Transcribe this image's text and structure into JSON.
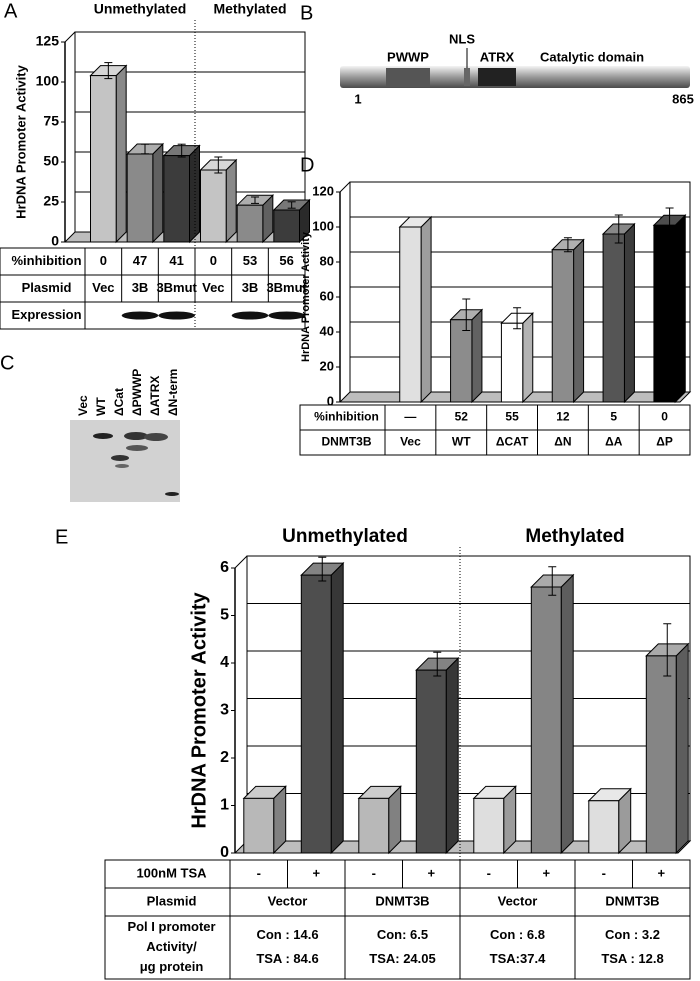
{
  "chart_data": [
    {
      "type": "bar",
      "panel": "A",
      "ylabel": "HrDNA Promoter Activity",
      "groups": [
        "Unmethylated",
        "Methylated"
      ],
      "categories": [
        "Vec",
        "3B",
        "3Bmut",
        "Vec",
        "3B",
        "3Bmut"
      ],
      "category_label": "Plasmid",
      "values": [
        104,
        55,
        54,
        45,
        23,
        20
      ],
      "errors": [
        5,
        3,
        4,
        5,
        2,
        2
      ],
      "colors": [
        "#c4c4c4",
        "#8a8a8a",
        "#3c3c3c",
        "#c4c4c4",
        "#8a8a8a",
        "#3c3c3c"
      ],
      "ylim": [
        0,
        125
      ],
      "yticks": [
        0,
        25,
        50,
        75,
        100,
        125
      ],
      "grid": true,
      "rows": [
        {
          "label": "%inhibition",
          "cells": [
            0,
            47,
            41,
            0,
            53,
            56
          ]
        }
      ],
      "rows_below": [
        {
          "label": "Expression"
        }
      ]
    },
    {
      "type": "bar",
      "panel": "D",
      "ylabel": "HrDNA Promoter Activity",
      "categories": [
        "Vec",
        "WT",
        "ΔCAT",
        "ΔN",
        "ΔA",
        "ΔP"
      ],
      "category_label": "DNMT3B",
      "values": [
        100,
        47,
        45,
        87,
        96,
        101
      ],
      "errors": [
        null,
        9,
        6,
        4,
        8,
        7
      ],
      "colors": [
        "#e0e0e0",
        "#8c8c8c",
        "#ffffff",
        "#8c8c8c",
        "#555555",
        "#000000"
      ],
      "ylim": [
        0,
        120
      ],
      "yticks": [
        0,
        20,
        40,
        60,
        80,
        100,
        120
      ],
      "grid": true,
      "rows": [
        {
          "label": "%inhibition",
          "cells": [
            "—",
            52,
            55,
            12,
            5,
            0
          ]
        }
      ]
    },
    {
      "type": "bar",
      "panel": "E",
      "ylabel": "HrDNA Promoter Activity",
      "groups": [
        "Unmethylated",
        "Methylated"
      ],
      "categories": [
        "-",
        "+",
        "-",
        "+",
        "-",
        "+",
        "-",
        "+"
      ],
      "category_label": "100nM TSA",
      "values": [
        1.15,
        5.85,
        1.15,
        3.85,
        1.15,
        5.6,
        1.1,
        4.15
      ],
      "errors": [
        null,
        0.25,
        null,
        0.25,
        null,
        0.3,
        null,
        0.55
      ],
      "colors": [
        "#b8b8b8",
        "#4e4e4e",
        "#b8b8b8",
        "#4e4e4e",
        "#dedede",
        "#858585",
        "#dedede",
        "#858585"
      ],
      "ylim": [
        0,
        6
      ],
      "yticks": [
        0,
        1,
        2,
        3,
        4,
        5,
        6
      ],
      "grid": true,
      "rows_below": [
        {
          "label": "Plasmid",
          "cells": [
            "Vector",
            "DNMT3B",
            "Vector",
            "DNMT3B"
          ]
        },
        {
          "label": [
            "Pol I promoter",
            "Activity/",
            "μg protein"
          ],
          "cells": [
            [
              "Con : 14.6",
              "TSA : 84.6"
            ],
            [
              "Con:  6.5",
              "TSA: 24.05"
            ],
            [
              "Con : 6.8",
              "TSA:37.4"
            ],
            [
              "Con : 3.2",
              "TSA : 12.8"
            ]
          ]
        }
      ]
    }
  ],
  "domain_diagram": {
    "panel": "B",
    "domains": [
      "PWWP",
      "NLS",
      "ATRX",
      "Catalytic domain"
    ],
    "start": "1",
    "end": "865"
  },
  "blot": {
    "panel": "C",
    "lanes": [
      "Vec",
      "WT",
      "ΔCat",
      "ΔPWWP",
      "ΔATRX",
      "ΔN-term"
    ]
  }
}
